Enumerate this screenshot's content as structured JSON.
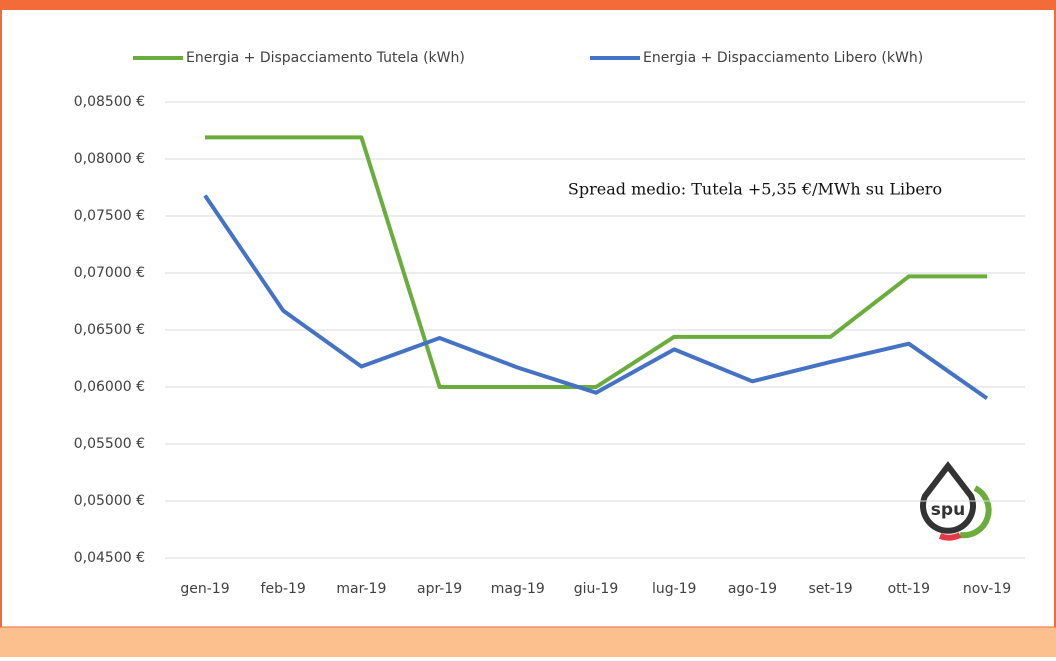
{
  "chart_data": {
    "type": "line",
    "annotation": "Spread medio: Tutela +5,35 €/MWh su Libero",
    "logo": "spu",
    "categories": [
      "gen-19",
      "feb-19",
      "mar-19",
      "apr-19",
      "mag-19",
      "giu-19",
      "lug-19",
      "ago-19",
      "set-19",
      "ott-19",
      "nov-19"
    ],
    "series": [
      {
        "name": "Energia + Dispacciamento Tutela (kWh)",
        "color": "#6aad3d",
        "values": [
          0.0819,
          0.0819,
          0.0819,
          0.06,
          0.06,
          0.06,
          0.0644,
          0.0644,
          0.0644,
          0.0697,
          0.0697
        ]
      },
      {
        "name": "Energia + Dispacciamento Libero (kWh)",
        "color": "#4472c4",
        "values": [
          0.0768,
          0.0667,
          0.0618,
          0.0643,
          0.0617,
          0.0595,
          0.0633,
          0.0605,
          0.0622,
          0.0638,
          0.059
        ]
      }
    ],
    "ylim": [
      0.045,
      0.085
    ],
    "yticks": [
      {
        "value": 0.045,
        "label": "0,04500 €"
      },
      {
        "value": 0.05,
        "label": "0,05000 €"
      },
      {
        "value": 0.055,
        "label": "0,05500 €"
      },
      {
        "value": 0.06,
        "label": "0,06000 €"
      },
      {
        "value": 0.065,
        "label": "0,06500 €"
      },
      {
        "value": 0.07,
        "label": "0,07000 €"
      },
      {
        "value": 0.075,
        "label": "0,07500 €"
      },
      {
        "value": 0.08,
        "label": "0,08000 €"
      },
      {
        "value": 0.085,
        "label": "0,08500 €"
      }
    ],
    "grid": true
  }
}
